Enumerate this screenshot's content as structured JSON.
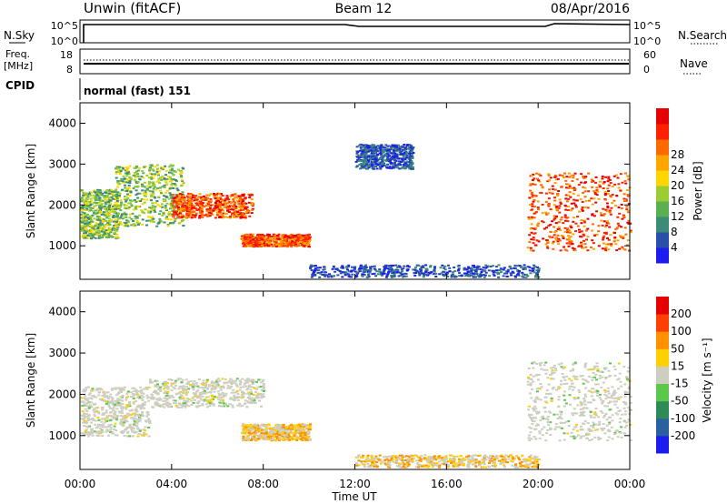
{
  "header": {
    "station": "Unwin (fitACF)",
    "beam": "Beam 12",
    "date": "08/Apr/2016"
  },
  "panels": {
    "nsky": {
      "label": "N.Sky",
      "right_label": "N.Search",
      "ticks": [
        "10^5",
        "10^0"
      ]
    },
    "freq": {
      "label_line1": "Freq.",
      "label_line2": "[MHz]",
      "left_ticks": [
        "18",
        "8"
      ],
      "right_label": "Nave",
      "right_ticks": [
        "60",
        "0"
      ]
    },
    "cpid": {
      "label": "CPID",
      "value": "normal (fast) 151"
    }
  },
  "chart_data": [
    {
      "type": "heatmap",
      "name": "power",
      "ylabel": "Slant Range [km]",
      "xlabel": "",
      "yticks": [
        "1000",
        "2000",
        "3000",
        "4000"
      ],
      "ylim": [
        180,
        4500
      ],
      "colorbar": {
        "label": "Power [dB]",
        "ticks": [
          "4",
          "8",
          "12",
          "16",
          "20",
          "24",
          "28"
        ],
        "colors": [
          "#1c1cf0",
          "#2a4fa8",
          "#3c8a78",
          "#5ab050",
          "#9acd32",
          "#ffd700",
          "#ffa500",
          "#ff6a00",
          "#ff2000",
          "#e60000"
        ]
      },
      "regions": [
        {
          "t": [
            0.0,
            1.6
          ],
          "r": [
            1200,
            2400
          ],
          "level": "mid"
        },
        {
          "t": [
            1.5,
            4.5
          ],
          "r": [
            1500,
            3000
          ],
          "level": "mid"
        },
        {
          "t": [
            4.0,
            7.5
          ],
          "r": [
            1700,
            2300
          ],
          "level": "high"
        },
        {
          "t": [
            7.0,
            10.0
          ],
          "r": [
            1000,
            1300
          ],
          "level": "high"
        },
        {
          "t": [
            12.0,
            14.5
          ],
          "r": [
            2900,
            3500
          ],
          "level": "low"
        },
        {
          "t": [
            10.0,
            20.0
          ],
          "r": [
            250,
            550
          ],
          "level": "low"
        },
        {
          "t": [
            19.5,
            24.0
          ],
          "r": [
            900,
            2800
          ],
          "level": "high"
        }
      ]
    },
    {
      "type": "heatmap",
      "name": "velocity",
      "ylabel": "Slant Range [km]",
      "xlabel": "Time UT",
      "xticks": [
        "00:00",
        "04:00",
        "08:00",
        "12:00",
        "16:00",
        "20:00",
        "00:00"
      ],
      "yticks": [
        "1000",
        "2000",
        "3000",
        "4000"
      ],
      "ylim": [
        180,
        4500
      ],
      "colorbar": {
        "label": "Velocity [m s⁻¹]",
        "ticks": [
          "200",
          "100",
          "50",
          "15",
          "-15",
          "-50",
          "-100",
          "-200"
        ],
        "colors": [
          "#1c1cf0",
          "#2a5fa0",
          "#2e8b57",
          "#5ac84a",
          "#cdcdc0",
          "#ffd000",
          "#ff9000",
          "#ff4000",
          "#e60000"
        ]
      },
      "regions": [
        {
          "t": [
            0.0,
            3.0
          ],
          "r": [
            1000,
            2200
          ],
          "level": "ground"
        },
        {
          "t": [
            3.0,
            8.0
          ],
          "r": [
            1700,
            2400
          ],
          "level": "ground"
        },
        {
          "t": [
            7.0,
            10.0
          ],
          "r": [
            900,
            1300
          ],
          "level": "away"
        },
        {
          "t": [
            12.0,
            20.0
          ],
          "r": [
            250,
            550
          ],
          "level": "away"
        },
        {
          "t": [
            19.5,
            24.0
          ],
          "r": [
            900,
            2800
          ],
          "level": "ground"
        }
      ]
    }
  ]
}
